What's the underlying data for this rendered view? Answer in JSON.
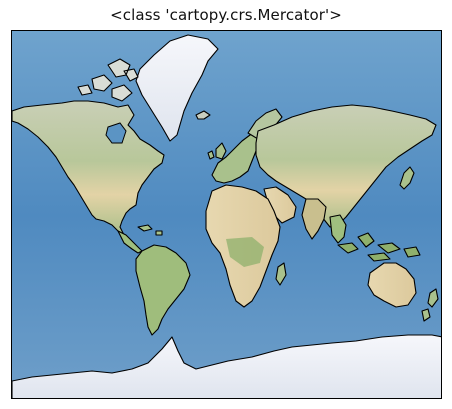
{
  "title": "<class 'cartopy.crs.Mercator'>",
  "projection": "Mercator",
  "basemap": "stock-image",
  "colors": {
    "ocean": "#5b94c4",
    "ocean_deep": "#4a84b8",
    "land_green": "#b7c79a",
    "land_desert": "#e6d7b0",
    "ice": "#eef1f7",
    "coastline": "#000000"
  }
}
